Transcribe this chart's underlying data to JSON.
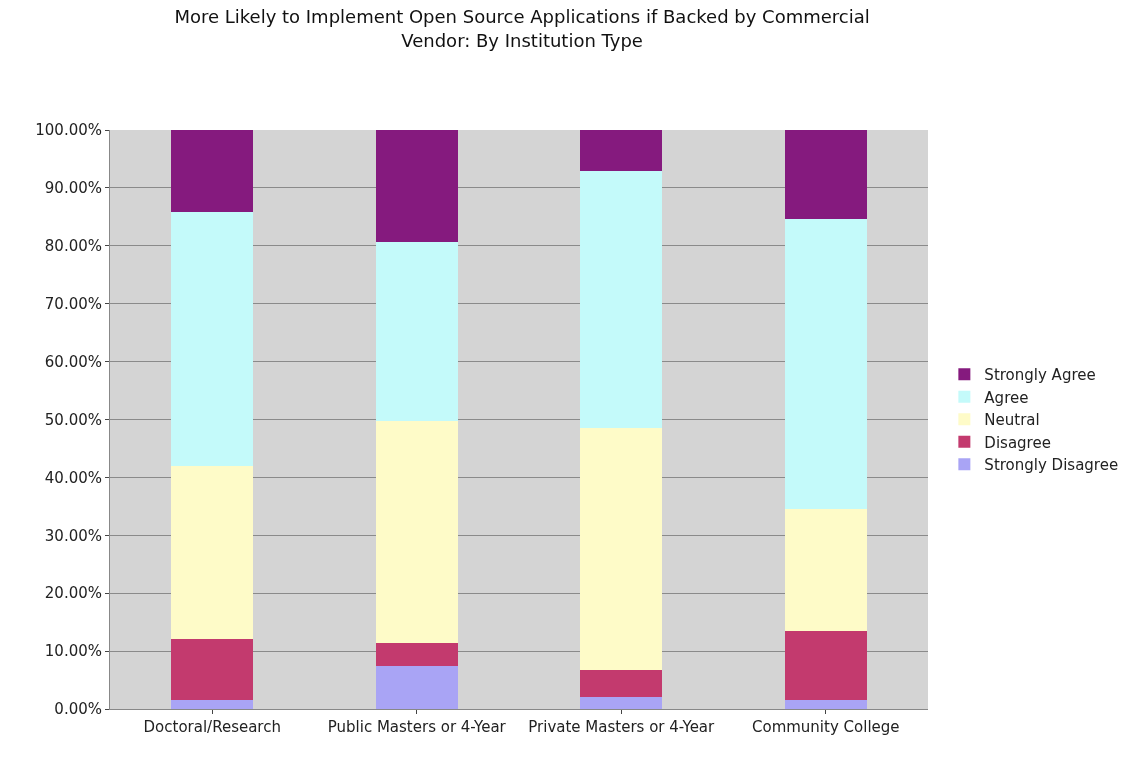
{
  "chart_data": {
    "type": "bar",
    "title": "More Likely to Implement Open Source Applications if Backed by Commercial Vendor: By Institution Type",
    "categories": [
      "Doctoral/Research",
      "Public Masters or 4-Year",
      "Private Masters or 4-Year",
      "Community College"
    ],
    "stacked": true,
    "series": [
      {
        "name": "Strongly Disagree",
        "color": "#a9a4f5",
        "values": [
          1.6,
          7.5,
          2.1,
          1.6
        ]
      },
      {
        "name": "Disagree",
        "color": "#c33a6e",
        "values": [
          10.5,
          3.9,
          4.7,
          11.8
        ]
      },
      {
        "name": "Neutral",
        "color": "#fefbc8",
        "values": [
          29.8,
          38.4,
          41.8,
          21.1
        ]
      },
      {
        "name": "Agree",
        "color": "#c4fafa",
        "values": [
          44.0,
          30.9,
          44.4,
          50.1
        ]
      },
      {
        "name": "Strongly Agree",
        "color": "#851a7e",
        "values": [
          14.1,
          19.3,
          7.0,
          15.4
        ]
      }
    ],
    "ylim": [
      0,
      100
    ],
    "yticks": [
      {
        "value": 0,
        "label": "0.00%"
      },
      {
        "value": 10,
        "label": "10.00%"
      },
      {
        "value": 20,
        "label": "20.00%"
      },
      {
        "value": 30,
        "label": "30.00%"
      },
      {
        "value": 40,
        "label": "40.00%"
      },
      {
        "value": 50,
        "label": "50.00%"
      },
      {
        "value": 60,
        "label": "60.00%"
      },
      {
        "value": 70,
        "label": "70.00%"
      },
      {
        "value": 80,
        "label": "80.00%"
      },
      {
        "value": 90,
        "label": "90.00%"
      },
      {
        "value": 100,
        "label": "100.00%"
      }
    ],
    "grid": "y",
    "legend": "right"
  }
}
